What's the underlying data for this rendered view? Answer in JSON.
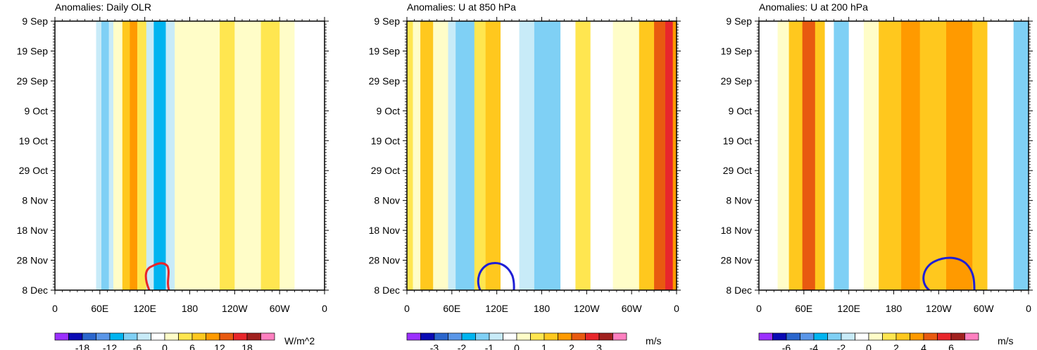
{
  "chart_data": [
    {
      "type": "heatmap",
      "title": "Anomalies: Daily OLR",
      "units": "W/m^2",
      "x_ticks": [
        "0",
        "60E",
        "120E",
        "180",
        "120W",
        "60W",
        "0"
      ],
      "y_ticks": [
        "9 Sep",
        "19 Sep",
        "29 Sep",
        "9 Oct",
        "19 Oct",
        "29 Oct",
        "8 Nov",
        "18 Nov",
        "28 Nov",
        "8 Dec"
      ],
      "colorbar_labels": [
        "-18",
        "-12",
        "-6",
        "0",
        "6",
        "12",
        "18"
      ],
      "colorbar_levels": [
        -21,
        -18,
        -15,
        -12,
        -9,
        -6,
        -3,
        0,
        3,
        6,
        9,
        12,
        15,
        18,
        21
      ],
      "contour_color": "#e8262b",
      "xlim": [
        0,
        360
      ],
      "ylim": [
        "9 Sep",
        "8 Dec"
      ],
      "bands": [
        {
          "lon_start": 0,
          "lon_end": 25,
          "value": -3
        },
        {
          "lon_start": 25,
          "lon_end": 55,
          "value": -1
        },
        {
          "lon_start": 55,
          "lon_end": 62,
          "value": -6
        },
        {
          "lon_start": 62,
          "lon_end": 72,
          "value": -9
        },
        {
          "lon_start": 72,
          "lon_end": 78,
          "value": -4
        },
        {
          "lon_start": 78,
          "lon_end": 90,
          "value": 2
        },
        {
          "lon_start": 90,
          "lon_end": 100,
          "value": 6
        },
        {
          "lon_start": 100,
          "lon_end": 110,
          "value": 10
        },
        {
          "lon_start": 110,
          "lon_end": 122,
          "value": 4
        },
        {
          "lon_start": 122,
          "lon_end": 132,
          "value": -4
        },
        {
          "lon_start": 132,
          "lon_end": 148,
          "value": -10
        },
        {
          "lon_start": 148,
          "lon_end": 160,
          "value": -4
        },
        {
          "lon_start": 160,
          "lon_end": 180,
          "value": 1
        },
        {
          "lon_start": 180,
          "lon_end": 220,
          "value": 2
        },
        {
          "lon_start": 220,
          "lon_end": 240,
          "value": 4
        },
        {
          "lon_start": 240,
          "lon_end": 275,
          "value": 1
        },
        {
          "lon_start": 275,
          "lon_end": 300,
          "value": 5
        },
        {
          "lon_start": 300,
          "lon_end": 320,
          "value": 1
        },
        {
          "lon_start": 320,
          "lon_end": 360,
          "value": -2
        }
      ]
    },
    {
      "type": "heatmap",
      "title": "Anomalies: U at 850 hPa",
      "units": "m/s",
      "x_ticks": [
        "0",
        "60E",
        "120E",
        "180",
        "120W",
        "60W",
        "0"
      ],
      "y_ticks": [
        "9 Sep",
        "19 Sep",
        "29 Sep",
        "9 Oct",
        "19 Oct",
        "29 Oct",
        "8 Nov",
        "18 Nov",
        "28 Nov",
        "8 Dec"
      ],
      "colorbar_labels": [
        "-3",
        "-2",
        "-1",
        "0",
        "1",
        "2",
        "3"
      ],
      "colorbar_levels": [
        -3.5,
        -3,
        -2.5,
        -2,
        -1.5,
        -1,
        -0.5,
        0,
        0.5,
        1,
        1.5,
        2,
        2.5,
        3,
        3.5
      ],
      "contour_color": "#1f1fd6",
      "xlim": [
        0,
        360
      ],
      "ylim": [
        "9 Sep",
        "8 Dec"
      ],
      "bands": [
        {
          "lon_start": 0,
          "lon_end": 8,
          "value": 0.8
        },
        {
          "lon_start": 8,
          "lon_end": 18,
          "value": 0.2
        },
        {
          "lon_start": 18,
          "lon_end": 35,
          "value": 1.2
        },
        {
          "lon_start": 35,
          "lon_end": 55,
          "value": 0.4
        },
        {
          "lon_start": 55,
          "lon_end": 65,
          "value": -0.7
        },
        {
          "lon_start": 65,
          "lon_end": 90,
          "value": -1.2
        },
        {
          "lon_start": 90,
          "lon_end": 105,
          "value": 0.6
        },
        {
          "lon_start": 105,
          "lon_end": 125,
          "value": 1.4
        },
        {
          "lon_start": 125,
          "lon_end": 150,
          "value": -0.3
        },
        {
          "lon_start": 150,
          "lon_end": 170,
          "value": -0.8
        },
        {
          "lon_start": 170,
          "lon_end": 205,
          "value": -1.2
        },
        {
          "lon_start": 205,
          "lon_end": 225,
          "value": -0.3
        },
        {
          "lon_start": 225,
          "lon_end": 245,
          "value": 0.8
        },
        {
          "lon_start": 245,
          "lon_end": 275,
          "value": -0.2
        },
        {
          "lon_start": 275,
          "lon_end": 310,
          "value": 0.3
        },
        {
          "lon_start": 310,
          "lon_end": 330,
          "value": 1.4
        },
        {
          "lon_start": 330,
          "lon_end": 345,
          "value": 2.2
        },
        {
          "lon_start": 345,
          "lon_end": 355,
          "value": 2.8
        },
        {
          "lon_start": 355,
          "lon_end": 360,
          "value": 1.5
        }
      ]
    },
    {
      "type": "heatmap",
      "title": "Anomalies: U at 200 hPa",
      "units": "m/s",
      "x_ticks": [
        "0",
        "60E",
        "120E",
        "180",
        "120W",
        "60W",
        "0"
      ],
      "y_ticks": [
        "9 Sep",
        "19 Sep",
        "29 Sep",
        "9 Oct",
        "19 Oct",
        "29 Oct",
        "8 Nov",
        "18 Nov",
        "28 Nov",
        "8 Dec"
      ],
      "colorbar_labels": [
        "-6",
        "-4",
        "-2",
        "0",
        "2",
        "4",
        "6"
      ],
      "colorbar_levels": [
        -7,
        -6,
        -5,
        -4,
        -3,
        -2,
        -1,
        0,
        1,
        2,
        3,
        4,
        5,
        6,
        7
      ],
      "contour_color": "#1f1fd6",
      "xlim": [
        0,
        360
      ],
      "ylim": [
        "9 Sep",
        "8 Dec"
      ],
      "bands": [
        {
          "lon_start": 0,
          "lon_end": 25,
          "value": -0.6
        },
        {
          "lon_start": 25,
          "lon_end": 40,
          "value": 0.4
        },
        {
          "lon_start": 40,
          "lon_end": 58,
          "value": 2.3
        },
        {
          "lon_start": 58,
          "lon_end": 75,
          "value": 4.3
        },
        {
          "lon_start": 75,
          "lon_end": 88,
          "value": 2.6
        },
        {
          "lon_start": 88,
          "lon_end": 100,
          "value": -0.4
        },
        {
          "lon_start": 100,
          "lon_end": 120,
          "value": -2.5
        },
        {
          "lon_start": 120,
          "lon_end": 140,
          "value": -0.8
        },
        {
          "lon_start": 140,
          "lon_end": 160,
          "value": 0.4
        },
        {
          "lon_start": 160,
          "lon_end": 190,
          "value": 2.4
        },
        {
          "lon_start": 190,
          "lon_end": 215,
          "value": 3.4
        },
        {
          "lon_start": 215,
          "lon_end": 250,
          "value": 2.2
        },
        {
          "lon_start": 250,
          "lon_end": 285,
          "value": 3.2
        },
        {
          "lon_start": 285,
          "lon_end": 305,
          "value": 2.1
        },
        {
          "lon_start": 305,
          "lon_end": 340,
          "value": -0.5
        },
        {
          "lon_start": 340,
          "lon_end": 360,
          "value": -2.2
        }
      ]
    }
  ],
  "colors": {
    "palette": [
      "#9b30ff",
      "#0a0ab4",
      "#2a66cd",
      "#5a96e8",
      "#00b4f0",
      "#7fd0f5",
      "#c8ebf8",
      "#ffffff",
      "#fffdc8",
      "#ffe650",
      "#ffc81e",
      "#ff9a00",
      "#e85a10",
      "#e8262b",
      "#a0201e",
      "#ff80c0"
    ],
    "frame": "#000000"
  }
}
